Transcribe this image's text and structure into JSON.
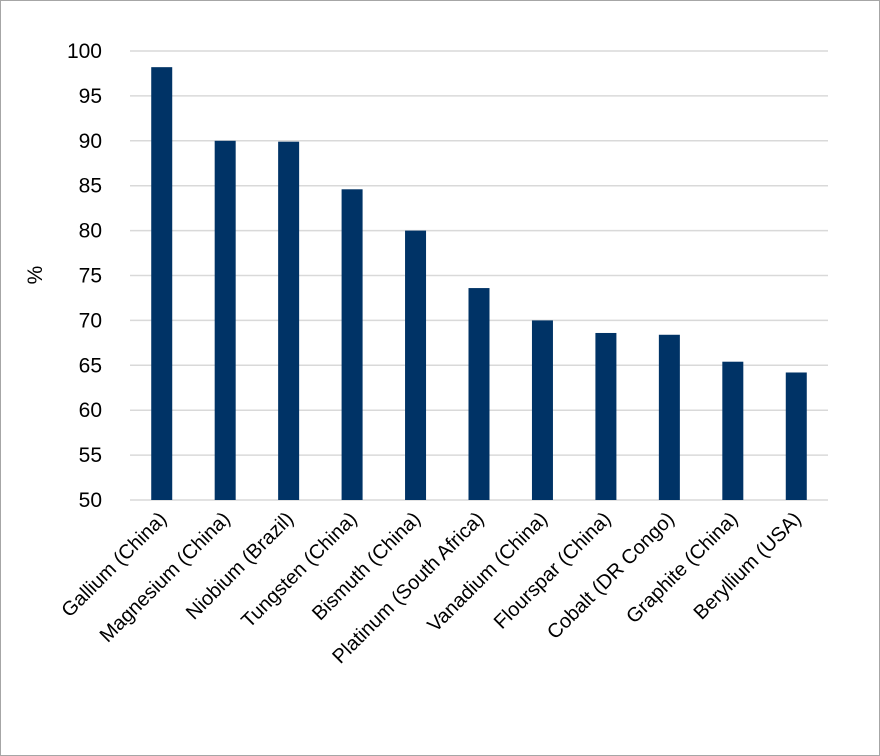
{
  "chart_data": {
    "type": "bar",
    "ylabel": "%",
    "ylim": [
      50,
      100
    ],
    "yticks": [
      50,
      55,
      60,
      65,
      70,
      75,
      80,
      85,
      90,
      95,
      100
    ],
    "grid": true,
    "legend": "none",
    "bar_color": "#003366",
    "grid_color": "#d9d9d9",
    "categories": [
      "Gallium (China)",
      "Magnesium (China)",
      "Niobium (Brazil)",
      "Tungsten (China)",
      "Bismuth (China)",
      "Platinum (South Africa)",
      "Vanadium (China)",
      "Flourspar (China)",
      "Cobalt (DR Congo)",
      "Graphite (China)",
      "Beryllium (USA)"
    ],
    "values": [
      98.2,
      90,
      89.9,
      84.6,
      80,
      73.6,
      70,
      68.6,
      68.4,
      65.4,
      64.2
    ]
  }
}
